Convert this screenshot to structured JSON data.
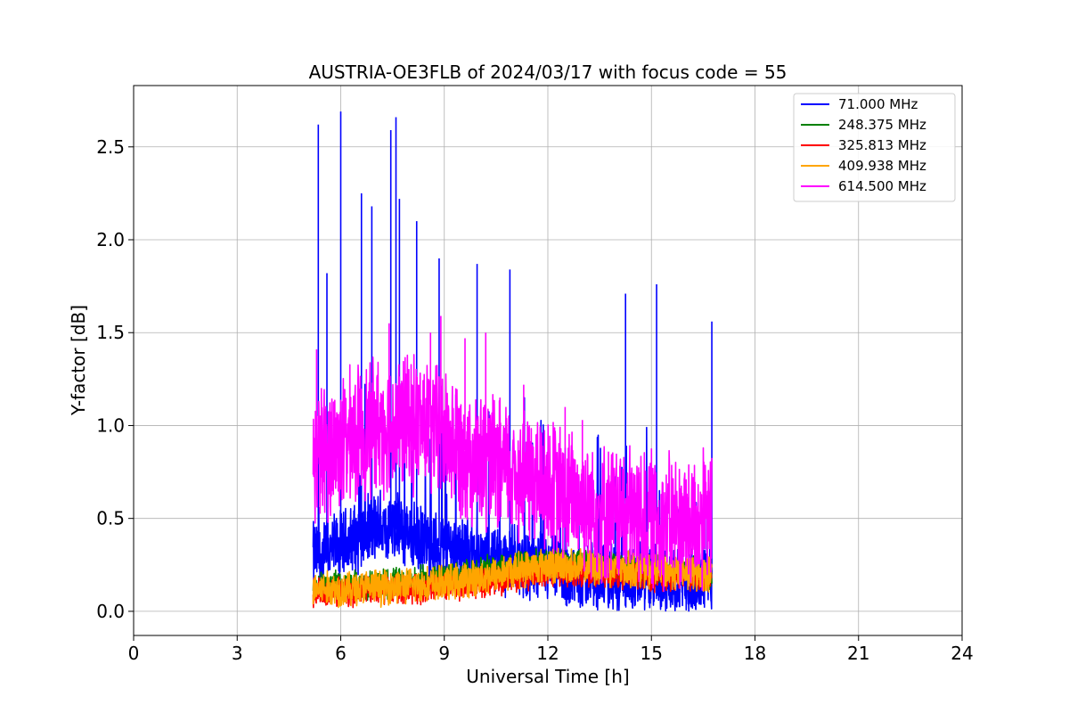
{
  "chart_data": {
    "type": "line",
    "title": "AUSTRIA-OE3FLB of 2024/03/17 with focus code = 55",
    "xlabel": "Universal Time [h]",
    "ylabel": "Y-factor [dB]",
    "xlim": [
      0,
      24
    ],
    "ylim": [
      -0.13,
      2.83
    ],
    "xticks": [
      0,
      3,
      6,
      9,
      12,
      15,
      18,
      21,
      24
    ],
    "xtick_labels": [
      "0",
      "3",
      "6",
      "9",
      "12",
      "15",
      "18",
      "21",
      "24"
    ],
    "yticks": [
      0.0,
      0.5,
      1.0,
      1.5,
      2.0,
      2.5
    ],
    "ytick_labels": [
      "0.0",
      "0.5",
      "1.0",
      "1.5",
      "2.0",
      "2.5"
    ],
    "grid": true,
    "legend_position": "upper-right",
    "series": [
      {
        "name": " 71.000 MHz",
        "color": "#0000ff",
        "x": [
          5.2,
          5.3,
          5.5,
          6.0,
          6.5,
          7.0,
          7.5,
          8.0,
          8.5,
          9.0,
          9.5,
          10.0,
          10.5,
          11.0,
          11.5,
          12.0,
          12.5,
          13.0,
          13.5,
          14.0,
          14.5,
          15.0,
          15.5,
          16.0,
          16.5,
          16.75
        ],
        "baseline": [
          0.3,
          0.3,
          0.3,
          0.35,
          0.4,
          0.45,
          0.45,
          0.4,
          0.35,
          0.35,
          0.33,
          0.3,
          0.28,
          0.28,
          0.25,
          0.22,
          0.2,
          0.2,
          0.18,
          0.17,
          0.17,
          0.17,
          0.17,
          0.16,
          0.17,
          0.2
        ],
        "spikes": [
          [
            5.35,
            2.62
          ],
          [
            5.6,
            1.82
          ],
          [
            6.0,
            2.69
          ],
          [
            6.6,
            2.25
          ],
          [
            6.9,
            2.18
          ],
          [
            7.45,
            2.59
          ],
          [
            7.6,
            2.66
          ],
          [
            7.7,
            2.22
          ],
          [
            8.2,
            2.1
          ],
          [
            8.85,
            1.9
          ],
          [
            9.95,
            1.87
          ],
          [
            10.9,
            1.84
          ],
          [
            14.25,
            1.71
          ],
          [
            15.15,
            1.76
          ],
          [
            16.75,
            1.56
          ]
        ]
      },
      {
        "name": " 248.375 MHz",
        "color": "#008000",
        "x": [
          5.2,
          6.0,
          7.0,
          8.0,
          9.0,
          10.0,
          11.0,
          12.0,
          13.0,
          14.0,
          15.0,
          16.0,
          16.75
        ],
        "baseline": [
          0.14,
          0.14,
          0.15,
          0.16,
          0.18,
          0.21,
          0.24,
          0.26,
          0.25,
          0.24,
          0.23,
          0.22,
          0.2
        ]
      },
      {
        "name": " 325.813 MHz",
        "color": "#ff0000",
        "x": [
          5.2,
          6.0,
          7.0,
          8.0,
          9.0,
          10.0,
          11.0,
          12.0,
          13.0,
          14.0,
          15.0,
          16.0,
          16.75
        ],
        "baseline": [
          0.1,
          0.1,
          0.11,
          0.12,
          0.13,
          0.15,
          0.18,
          0.21,
          0.21,
          0.2,
          0.19,
          0.18,
          0.17
        ]
      },
      {
        "name": " 409.938 MHz",
        "color": "#ffa500",
        "x": [
          5.2,
          6.0,
          7.0,
          8.0,
          9.0,
          10.0,
          11.0,
          12.0,
          13.0,
          14.0,
          15.0,
          16.0,
          16.75
        ],
        "baseline": [
          0.12,
          0.12,
          0.13,
          0.14,
          0.15,
          0.18,
          0.22,
          0.25,
          0.24,
          0.23,
          0.22,
          0.21,
          0.2
        ]
      },
      {
        "name": " 614.500 MHz",
        "color": "#ff00ff",
        "x": [
          5.2,
          5.5,
          6.0,
          6.5,
          7.0,
          7.5,
          8.0,
          8.5,
          9.0,
          9.5,
          10.0,
          10.5,
          11.0,
          11.5,
          12.0,
          12.5,
          13.0,
          13.5,
          14.0,
          14.5,
          15.0,
          15.5,
          16.0,
          16.5,
          16.75
        ],
        "baseline": [
          0.85,
          0.85,
          0.9,
          0.95,
          1.0,
          1.0,
          1.02,
          1.0,
          0.95,
          0.88,
          0.8,
          0.78,
          0.75,
          0.72,
          0.68,
          0.62,
          0.6,
          0.55,
          0.52,
          0.52,
          0.5,
          0.48,
          0.48,
          0.48,
          0.5
        ],
        "spikes": [
          [
            5.3,
            1.41
          ],
          [
            7.4,
            1.55
          ],
          [
            8.6,
            1.5
          ],
          [
            8.9,
            1.59
          ],
          [
            9.6,
            1.47
          ],
          [
            10.2,
            1.5
          ],
          [
            11.3,
            1.22
          ],
          [
            12.5,
            1.1
          ],
          [
            13.0,
            1.03
          ]
        ]
      }
    ]
  }
}
